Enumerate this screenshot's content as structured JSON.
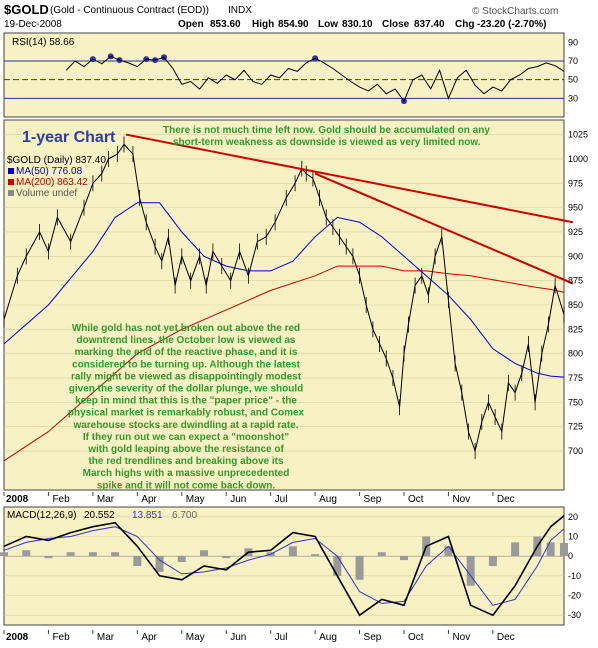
{
  "header": {
    "symbol": "$GOLD",
    "description": "(Gold - Continuous Contract (EOD))",
    "exchange": "INDX",
    "site": "© StockCharts.com",
    "date": "19-Dec-2008",
    "open_label": "Open",
    "open": "853.60",
    "high_label": "High",
    "high": "854.90",
    "low_label": "Low",
    "low": "830.10",
    "close_label": "Close",
    "close": "837.40",
    "chg_label": "Chg",
    "chg": "-23.20 (-2.70%)"
  },
  "annotations": {
    "chart_label": "1-year Chart",
    "top_comment_1": "There is not much time left now. Gold should  be accumulated on any",
    "top_comment_2": "short-term weakness as downside is viewed as very limited now.",
    "main_comment": [
      "While gold has not yet broken out above the red",
      "downtrend lines, the October low is viewed as",
      "marking the end of the reactive phase, and it is",
      "considered to be turning up. Although the latest",
      "rally might be viewed as disappointingly modest",
      "given the severity of the dollar plunge, we should",
      "keep in mind that this is the \"paper price\" - the",
      "physical market is remarkably robust, and Comex",
      "warehouse stocks are dwindling at a rapid rate.",
      "If they run out we can expect a \"moonshot\"",
      "with gold leaping above the resistance of",
      "the red trendlines and breaking above its",
      "March highs with a massive unprecedented",
      "spike and it will not come back down."
    ]
  },
  "colors": {
    "panel_bg": "#f8f1c3",
    "price_line": "#000000",
    "ma50": "#0000cc",
    "ma200": "#cc0000",
    "trendline": "#cc0000",
    "rsi_fill": "#3333aa",
    "annotation_text": "#2e9c2e",
    "macd_hist": "#9a9a9a",
    "macd_signal": "#3333cc"
  },
  "chart_data": [
    {
      "type": "line",
      "name": "RSI panel",
      "legend": "RSI(14) 58.66",
      "ylim": [
        10,
        100
      ],
      "y_ticks": [
        10,
        30,
        50,
        70,
        90
      ],
      "reference_lines": [
        30,
        50,
        70
      ],
      "x_months": [
        1.4,
        1.6,
        1.8,
        2.0,
        2.2,
        2.4,
        2.6,
        2.8,
        3.0,
        3.2,
        3.4,
        3.6,
        3.8,
        4.0,
        4.2,
        4.4,
        4.6,
        4.8,
        5.0,
        5.2,
        5.4,
        5.6,
        5.8,
        6.0,
        6.2,
        6.4,
        6.6,
        6.8,
        7.0,
        7.2,
        7.4,
        7.6,
        7.8,
        8.0,
        8.2,
        8.4,
        8.6,
        8.8,
        9.0,
        9.2,
        9.4,
        9.6,
        9.8,
        10.0,
        10.2,
        10.4,
        10.6,
        10.8,
        11.0,
        11.2,
        11.4,
        11.6,
        11.8,
        12.0,
        12.2,
        12.4,
        12.6
      ],
      "values": [
        60,
        70,
        64,
        72,
        67,
        75,
        71,
        68,
        64,
        72,
        71,
        74,
        62,
        45,
        48,
        40,
        52,
        46,
        55,
        50,
        60,
        48,
        45,
        55,
        52,
        62,
        59,
        68,
        73,
        68,
        62,
        55,
        48,
        42,
        38,
        45,
        35,
        40,
        27,
        50,
        55,
        40,
        60,
        30,
        52,
        60,
        44,
        35,
        42,
        38,
        50,
        55,
        62,
        64,
        68,
        65,
        59
      ]
    },
    {
      "type": "line",
      "name": "Price panel",
      "legend": [
        "$GOLD (Daily) 837.40",
        "MA(50) 776.08",
        "MA(200) 863.42",
        "Volume undef"
      ],
      "ylim": [
        660,
        1040
      ],
      "y_ticks": [
        700,
        725,
        750,
        775,
        800,
        825,
        850,
        875,
        900,
        925,
        950,
        975,
        1000,
        1025
      ],
      "x_axis_ticks": [
        "2008",
        "Feb",
        "Mar",
        "Apr",
        "May",
        "Jun",
        "Jul",
        "Aug",
        "Sep",
        "Oct",
        "Nov",
        "Dec"
      ],
      "series": [
        {
          "name": "$GOLD",
          "x": [
            0,
            0.3,
            0.5,
            0.8,
            1.0,
            1.2,
            1.5,
            1.8,
            2.0,
            2.2,
            2.35,
            2.55,
            2.7,
            2.9,
            3.05,
            3.2,
            3.4,
            3.55,
            3.7,
            3.85,
            4.0,
            4.2,
            4.4,
            4.55,
            4.7,
            4.9,
            5.1,
            5.3,
            5.5,
            5.7,
            5.9,
            6.1,
            6.35,
            6.55,
            6.7,
            6.8,
            6.95,
            7.1,
            7.25,
            7.4,
            7.55,
            7.7,
            7.85,
            8.0,
            8.15,
            8.3,
            8.45,
            8.6,
            8.75,
            8.9,
            9.0,
            9.1,
            9.25,
            9.4,
            9.55,
            9.7,
            9.85,
            10.0,
            10.15,
            10.3,
            10.45,
            10.6,
            10.75,
            10.9,
            11.05,
            11.2,
            11.35,
            11.5,
            11.65,
            11.8,
            11.95,
            12.1,
            12.25,
            12.4,
            12.6
          ],
          "values": [
            835,
            880,
            900,
            925,
            905,
            940,
            915,
            950,
            975,
            985,
            1000,
            1005,
            1015,
            1005,
            960,
            935,
            910,
            895,
            920,
            870,
            900,
            875,
            900,
            870,
            905,
            890,
            875,
            905,
            880,
            915,
            920,
            935,
            960,
            975,
            990,
            985,
            980,
            960,
            940,
            930,
            920,
            910,
            900,
            880,
            850,
            825,
            810,
            795,
            775,
            745,
            800,
            830,
            870,
            880,
            860,
            900,
            920,
            855,
            790,
            760,
            720,
            700,
            730,
            750,
            735,
            720,
            770,
            760,
            780,
            810,
            750,
            800,
            830,
            870,
            840
          ]
        }
      ],
      "ma50": {
        "x": [
          0,
          1.0,
          2.0,
          2.5,
          3.0,
          3.5,
          4.0,
          4.5,
          5.0,
          5.5,
          6.0,
          6.5,
          7.0,
          7.5,
          8.0,
          8.5,
          9.0,
          9.5,
          10.0,
          10.5,
          11.0,
          11.5,
          12.0,
          12.3,
          12.6
        ],
        "values": [
          810,
          850,
          905,
          940,
          955,
          955,
          925,
          900,
          890,
          885,
          885,
          895,
          920,
          940,
          935,
          920,
          900,
          880,
          860,
          835,
          805,
          790,
          780,
          777,
          776
        ]
      },
      "ma200": {
        "x": [
          0,
          1.0,
          2.0,
          3.0,
          4.0,
          5.0,
          6.0,
          7.0,
          7.5,
          8.0,
          8.5,
          9.0,
          9.5,
          10.0,
          10.5,
          11.0,
          11.5,
          12.0,
          12.3,
          12.6
        ],
        "values": [
          690,
          720,
          760,
          800,
          825,
          845,
          865,
          880,
          890,
          890,
          890,
          885,
          885,
          882,
          880,
          876,
          872,
          868,
          866,
          863
        ]
      },
      "trendlines": [
        {
          "x": [
            2.75,
            12.8
          ],
          "values": [
            1025,
            935
          ]
        },
        {
          "x": [
            7.0,
            12.8
          ],
          "values": [
            985,
            872
          ]
        }
      ]
    },
    {
      "type": "line",
      "name": "MACD panel",
      "legend": [
        "MACD(12,26,9)",
        "20.552",
        "13.851",
        "6.700"
      ],
      "ylim": [
        -35,
        25
      ],
      "y_ticks": [
        -30,
        -20,
        -10,
        0,
        10,
        20
      ],
      "x_axis_ticks": [
        "2008",
        "Feb",
        "Mar",
        "Apr",
        "May",
        "Jun",
        "Jul",
        "Aug",
        "Sep",
        "Oct",
        "Nov",
        "Dec"
      ],
      "x_months": [
        0,
        0.5,
        1.0,
        1.5,
        2.0,
        2.5,
        3.0,
        3.5,
        4.0,
        4.5,
        5.0,
        5.5,
        6.0,
        6.5,
        7.0,
        7.5,
        8.0,
        8.5,
        9.0,
        9.5,
        10.0,
        10.5,
        11.0,
        11.5,
        12.0,
        12.3,
        12.6
      ],
      "macd": [
        5,
        10,
        8,
        12,
        15,
        17,
        5,
        -10,
        -12,
        -5,
        -7,
        2,
        3,
        12,
        10,
        -10,
        -30,
        -22,
        -25,
        5,
        10,
        -25,
        -30,
        -15,
        5,
        15,
        20.552
      ],
      "signal": [
        3,
        7,
        9,
        10,
        13,
        15,
        10,
        -2,
        -9,
        -8,
        -6,
        -2,
        1,
        7,
        9,
        0,
        -18,
        -24,
        -23,
        -5,
        5,
        -10,
        -25,
        -22,
        -5,
        8,
        13.851
      ],
      "histogram": [
        2,
        3,
        -1,
        2,
        2,
        2,
        -5,
        -8,
        -3,
        3,
        -1,
        4,
        2,
        5,
        1,
        -10,
        -12,
        2,
        -2,
        10,
        5,
        -15,
        -5,
        7,
        10,
        7,
        6.7
      ]
    }
  ]
}
